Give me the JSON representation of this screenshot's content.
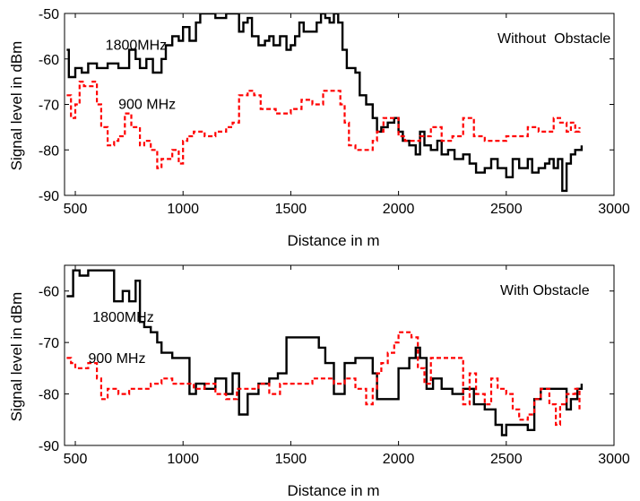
{
  "chart_data": [
    {
      "type": "line",
      "annotation": "Without  Obstacle",
      "xlabel": "Distance in m",
      "ylabel": "Signal level in dBm",
      "xlim": [
        450,
        3000
      ],
      "ylim": [
        -90,
        -50
      ],
      "xticks": [
        500,
        1000,
        1500,
        2000,
        2500,
        3000
      ],
      "yticks": [
        -50,
        -60,
        -70,
        -80,
        -90
      ],
      "series_labels": [
        {
          "name": "1800MHz",
          "at": [
            640,
            -58
          ]
        },
        {
          "name": "900 MHz",
          "at": [
            700,
            -71
          ]
        }
      ],
      "series": [
        {
          "name": "1800MHz",
          "color": "#000000",
          "dash": "solid",
          "x": [
            460,
            470,
            500,
            530,
            560,
            600,
            650,
            700,
            750,
            780,
            800,
            830,
            860,
            900,
            920,
            950,
            980,
            1000,
            1030,
            1060,
            1080,
            1100,
            1150,
            1200,
            1250,
            1260,
            1280,
            1300,
            1320,
            1350,
            1380,
            1400,
            1420,
            1450,
            1480,
            1500,
            1520,
            1540,
            1560,
            1600,
            1620,
            1640,
            1660,
            1680,
            1700,
            1720,
            1740,
            1760,
            1780,
            1800,
            1820,
            1850,
            1880,
            1900,
            1920,
            1950,
            1980,
            2000,
            2020,
            2050,
            2080,
            2100,
            2120,
            2150,
            2180,
            2200,
            2230,
            2260,
            2300,
            2330,
            2360,
            2400,
            2430,
            2460,
            2500,
            2530,
            2560,
            2600,
            2620,
            2650,
            2680,
            2700,
            2720,
            2740,
            2760,
            2780,
            2800,
            2820,
            2850
          ],
          "y": [
            -58,
            -64,
            -62,
            -63,
            -61,
            -62,
            -61,
            -62,
            -58,
            -60,
            -62,
            -60,
            -63,
            -60,
            -57,
            -55,
            -56,
            -53,
            -56,
            -52,
            -50,
            -50,
            -51,
            -50,
            -50,
            -54,
            -52,
            -51,
            -55,
            -57,
            -56,
            -55,
            -57,
            -55,
            -58,
            -57,
            -55,
            -52,
            -54,
            -54,
            -52,
            -50,
            -51,
            -52,
            -50,
            -52,
            -58,
            -62,
            -62,
            -63,
            -68,
            -70,
            -73,
            -76,
            -75,
            -74,
            -73,
            -76,
            -78,
            -79,
            -81,
            -76,
            -79,
            -80,
            -78,
            -81,
            -80,
            -82,
            -81,
            -83,
            -85,
            -84,
            -82,
            -84,
            -86,
            -82,
            -84,
            -82,
            -85,
            -84,
            -83,
            -82,
            -84,
            -82,
            -89,
            -83,
            -81,
            -80,
            -79
          ]
        },
        {
          "name": "900 MHz",
          "color": "#ff0000",
          "dash": "dashed",
          "x": [
            460,
            480,
            500,
            520,
            540,
            580,
            600,
            620,
            650,
            680,
            700,
            730,
            760,
            800,
            820,
            850,
            880,
            900,
            950,
            980,
            1000,
            1020,
            1050,
            1100,
            1150,
            1200,
            1230,
            1260,
            1300,
            1330,
            1360,
            1400,
            1430,
            1460,
            1500,
            1550,
            1600,
            1650,
            1700,
            1730,
            1750,
            1770,
            1800,
            1850,
            1880,
            1900,
            1930,
            1960,
            2000,
            2030,
            2060,
            2100,
            2150,
            2200,
            2250,
            2300,
            2350,
            2400,
            2450,
            2500,
            2550,
            2600,
            2650,
            2700,
            2720,
            2750,
            2780,
            2800,
            2820,
            2840
          ],
          "y": [
            -68,
            -73,
            -70,
            -65,
            -66,
            -65,
            -70,
            -75,
            -79,
            -78,
            -77,
            -72,
            -75,
            -79,
            -78,
            -80,
            -84,
            -82,
            -80,
            -83,
            -78,
            -77,
            -76,
            -77,
            -76,
            -75,
            -74,
            -68,
            -67,
            -68,
            -71,
            -71,
            -72,
            -72,
            -71,
            -69,
            -70,
            -67,
            -67,
            -70,
            -74,
            -79,
            -80,
            -80,
            -78,
            -76,
            -73,
            -73,
            -77,
            -78,
            -78,
            -77,
            -75,
            -78,
            -77,
            -73,
            -77,
            -78,
            -78,
            -77,
            -77,
            -75,
            -76,
            -76,
            -73,
            -74,
            -76,
            -74,
            -76,
            -75
          ]
        }
      ]
    },
    {
      "type": "line",
      "annotation": "With Obstacle",
      "xlabel": "Distance in m",
      "ylabel": "Signal level in dBm",
      "xlim": [
        450,
        3000
      ],
      "ylim": [
        -90,
        -55
      ],
      "xticks": [
        500,
        1000,
        1500,
        2000,
        2500,
        3000
      ],
      "yticks": [
        -60,
        -70,
        -80,
        -90
      ],
      "series_labels": [
        {
          "name": "1800MHz",
          "at": [
            580,
            -66
          ]
        },
        {
          "name": "900 MHz",
          "at": [
            560,
            -74
          ]
        }
      ],
      "series": [
        {
          "name": "1800MHz",
          "color": "#000000",
          "dash": "solid",
          "x": [
            460,
            490,
            520,
            560,
            600,
            640,
            680,
            720,
            750,
            780,
            800,
            820,
            850,
            880,
            900,
            950,
            1000,
            1030,
            1060,
            1100,
            1150,
            1200,
            1230,
            1260,
            1300,
            1350,
            1400,
            1440,
            1480,
            1500,
            1550,
            1600,
            1630,
            1660,
            1700,
            1750,
            1800,
            1850,
            1880,
            1900,
            1950,
            2000,
            2050,
            2080,
            2100,
            2130,
            2160,
            2200,
            2250,
            2300,
            2350,
            2400,
            2450,
            2480,
            2500,
            2550,
            2600,
            2630,
            2660,
            2700,
            2750,
            2780,
            2800,
            2830,
            2850
          ],
          "y": [
            -61,
            -56,
            -57,
            -56,
            -56,
            -56,
            -62,
            -60,
            -62,
            -58,
            -66,
            -67,
            -68,
            -70,
            -72,
            -73,
            -73,
            -80,
            -78,
            -79,
            -77,
            -80,
            -76,
            -84,
            -80,
            -78,
            -77,
            -76,
            -69,
            -69,
            -69,
            -69,
            -71,
            -74,
            -80,
            -74,
            -73,
            -73,
            -76,
            -81,
            -81,
            -75,
            -73,
            -71,
            -73,
            -79,
            -77,
            -79,
            -80,
            -79,
            -82,
            -83,
            -86,
            -88,
            -86,
            -86,
            -87,
            -81,
            -79,
            -79,
            -79,
            -83,
            -81,
            -79,
            -78
          ]
        },
        {
          "name": "900 MHz",
          "color": "#ff0000",
          "dash": "dashed",
          "x": [
            460,
            480,
            500,
            530,
            560,
            600,
            620,
            650,
            700,
            750,
            800,
            850,
            900,
            950,
            1000,
            1050,
            1100,
            1150,
            1200,
            1250,
            1300,
            1350,
            1400,
            1450,
            1500,
            1550,
            1600,
            1650,
            1700,
            1750,
            1800,
            1850,
            1880,
            1900,
            1920,
            1950,
            1980,
            2000,
            2030,
            2060,
            2090,
            2120,
            2150,
            2180,
            2200,
            2230,
            2260,
            2300,
            2330,
            2360,
            2400,
            2430,
            2460,
            2500,
            2530,
            2560,
            2600,
            2630,
            2660,
            2700,
            2730,
            2750,
            2780,
            2800,
            2820,
            2840
          ],
          "y": [
            -73,
            -74,
            -75,
            -75,
            -74,
            -77,
            -81,
            -79,
            -80,
            -79,
            -79,
            -78,
            -77,
            -78,
            -78,
            -79,
            -78,
            -80,
            -81,
            -79,
            -79,
            -78,
            -80,
            -78,
            -78,
            -78,
            -77,
            -77,
            -78,
            -77,
            -79,
            -82,
            -79,
            -76,
            -74,
            -72,
            -70,
            -68,
            -68,
            -69,
            -75,
            -78,
            -73,
            -73,
            -73,
            -73,
            -73,
            -82,
            -76,
            -80,
            -82,
            -77,
            -79,
            -80,
            -83,
            -85,
            -84,
            -81,
            -79,
            -82,
            -86,
            -82,
            -80,
            -80,
            -79,
            -83
          ]
        }
      ]
    }
  ]
}
